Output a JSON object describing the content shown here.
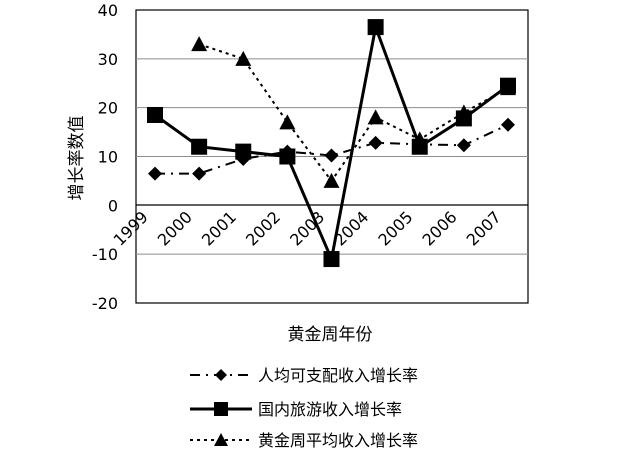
{
  "chart_data": {
    "type": "line",
    "xlabel": "黄金周年份",
    "ylabel": "增长率数值",
    "categories": [
      "1999",
      "2000",
      "2001",
      "2002",
      "2003",
      "2004",
      "2005",
      "2006",
      "2007"
    ],
    "ylim": [
      -20,
      40
    ],
    "yticks": [
      -20,
      -10,
      0,
      10,
      20,
      30,
      40
    ],
    "grid": true,
    "legend_placement": "bottom",
    "series": [
      {
        "name": "人均可支配收入增长率",
        "marker": "diamond",
        "line": "dash-dot",
        "values": [
          6.5,
          6.5,
          9.5,
          11.0,
          10.2,
          12.8,
          12.5,
          12.3,
          16.5
        ]
      },
      {
        "name": "国内旅游收入增长率",
        "marker": "square",
        "line": "solid",
        "values": [
          18.5,
          12.0,
          11.0,
          10.0,
          -11.0,
          36.5,
          12.0,
          17.8,
          24.5
        ]
      },
      {
        "name": "黄金周平均收入增长率",
        "marker": "triangle",
        "line": "dotted",
        "values": [
          null,
          33.0,
          30.0,
          17.0,
          5.0,
          18.0,
          13.5,
          19.0,
          24.0
        ]
      }
    ]
  }
}
